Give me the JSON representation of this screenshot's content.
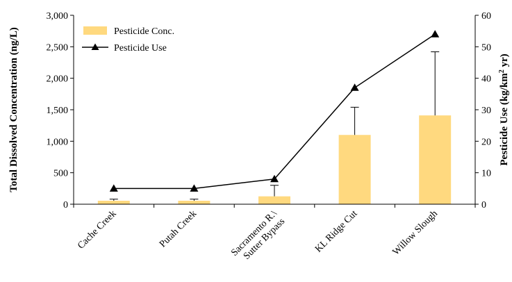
{
  "chart_data": {
    "type": "bar",
    "categories": [
      "Cache Creek",
      "Putah Creek",
      "Sacramento R.\\ Sutter Bypass",
      "KL Ridge Cut",
      "Willow Slough"
    ],
    "category_lines": [
      [
        "Cache Creek"
      ],
      [
        "Putah Creek"
      ],
      [
        "Sacramento R.\\",
        "Sutter Bypass"
      ],
      [
        "KL Ridge Cut"
      ],
      [
        "Willow Slough"
      ]
    ],
    "series": [
      {
        "name": "Pesticide Conc.",
        "kind": "bar",
        "axis": "left",
        "values": [
          55,
          55,
          125,
          1100,
          1410
        ],
        "error_upper": [
          80,
          80,
          300,
          1540,
          2420
        ],
        "color": "#FFD97F"
      },
      {
        "name": "Pesticide Use",
        "kind": "line",
        "axis": "right",
        "values": [
          5,
          5,
          8,
          37,
          54
        ],
        "color": "#000000",
        "marker": "triangle"
      }
    ],
    "ylabel": "Total Dissolved Concentration (ng/L)",
    "y2label_parts": [
      "Pesticide Use (kg/km",
      "2",
      " yr)"
    ],
    "ylim": [
      0,
      3000
    ],
    "y2lim": [
      0,
      60
    ],
    "y_ticks": [
      "0",
      "500",
      "1,000",
      "1,500",
      "2,000",
      "2,500",
      "3,000"
    ],
    "y2_ticks": [
      "0",
      "10",
      "20",
      "30",
      "40",
      "50",
      "60"
    ],
    "legend_position": "top-left",
    "grid": false
  }
}
